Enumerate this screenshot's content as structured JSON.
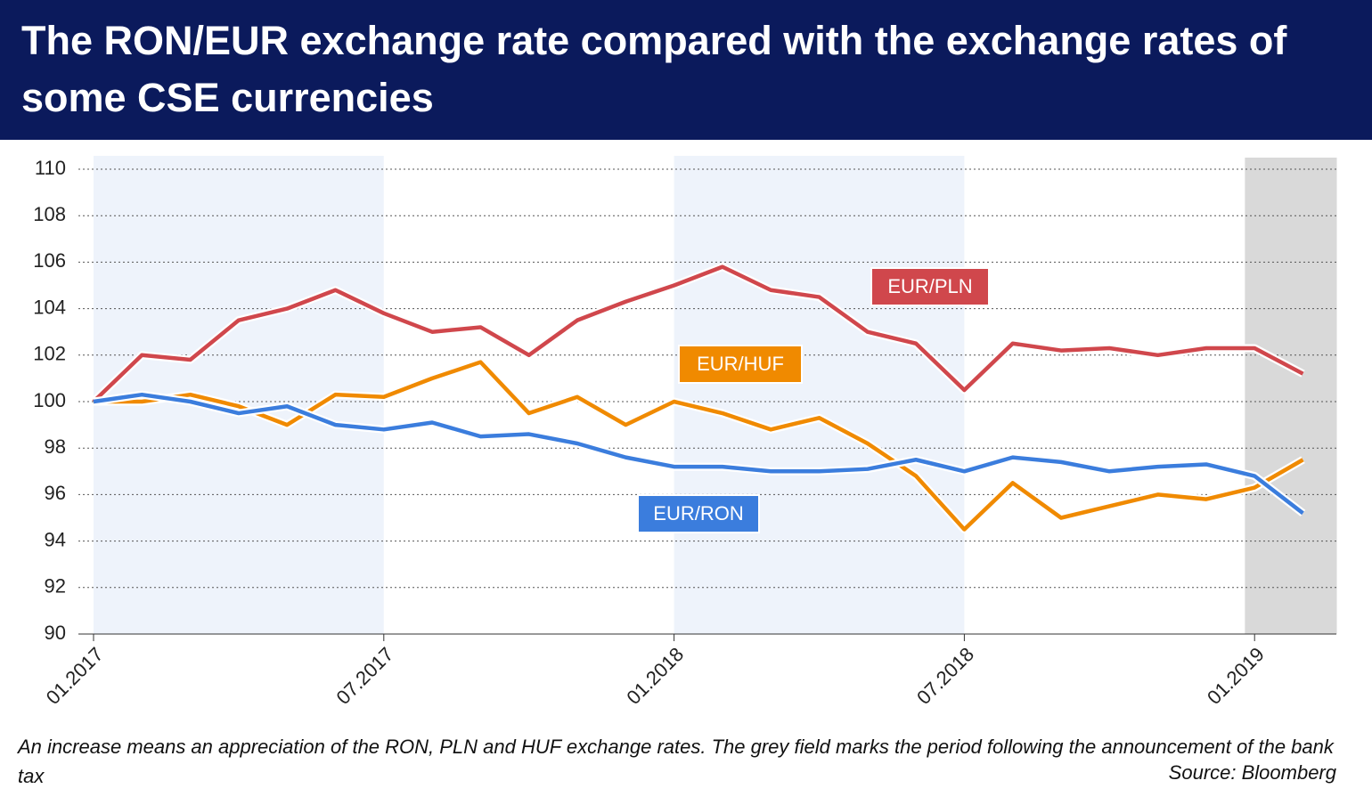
{
  "chart_data": {
    "type": "line",
    "title": "The RON/EUR exchange rate compared with the exchange rates of some CSE currencies",
    "note": "An increase means an appreciation of the RON, PLN and HUF exchange rates. The grey field marks the period following the announcement of the bank tax",
    "source": "Source: Bloomberg",
    "categories": [
      "01.2017",
      null,
      null,
      null,
      null,
      null,
      "07.2017",
      null,
      null,
      null,
      null,
      null,
      "01.2018",
      null,
      null,
      null,
      null,
      null,
      "07.2018",
      null,
      null,
      null,
      null,
      null,
      "01.2019",
      null
    ],
    "series": [
      {
        "name": "EUR/PLN",
        "color": "#d0474c",
        "values": [
          100,
          102,
          101.8,
          103.5,
          104,
          104.8,
          103.8,
          103,
          103.2,
          102,
          103.5,
          104.3,
          105,
          105.8,
          104.8,
          104.5,
          103,
          102.5,
          100.5,
          102.5,
          102.2,
          102.3,
          102,
          102.3,
          102.3,
          101.2
        ]
      },
      {
        "name": "EUR/HUF",
        "color": "#f08a00",
        "values": [
          100,
          100,
          100.3,
          99.8,
          99,
          100.3,
          100.2,
          101,
          101.7,
          99.5,
          100.2,
          99,
          100,
          99.5,
          98.8,
          99.3,
          98.2,
          96.8,
          94.5,
          96.5,
          95,
          95.5,
          96,
          95.8,
          96.3,
          97.5
        ]
      },
      {
        "name": "EUR/RON",
        "color": "#3b7ddd",
        "values": [
          100,
          100.3,
          100,
          99.5,
          99.8,
          99,
          98.8,
          99.1,
          98.5,
          98.6,
          98.2,
          97.6,
          97.2,
          97.2,
          97,
          97,
          97.1,
          97.5,
          97,
          97.6,
          97.4,
          97,
          97.2,
          97.3,
          96.8,
          95.2
        ]
      }
    ],
    "ylim": [
      90,
      110
    ],
    "yticks": [
      90,
      92,
      94,
      96,
      98,
      100,
      102,
      104,
      106,
      108,
      110
    ],
    "grid": true,
    "bands": [
      {
        "from": 0,
        "to": 6,
        "color": "#eef3fb"
      },
      {
        "from": 12,
        "to": 18,
        "color": "#eef3fb"
      },
      {
        "from": 23.8,
        "to": 25.7,
        "color": "#d9d9d9"
      }
    ]
  }
}
